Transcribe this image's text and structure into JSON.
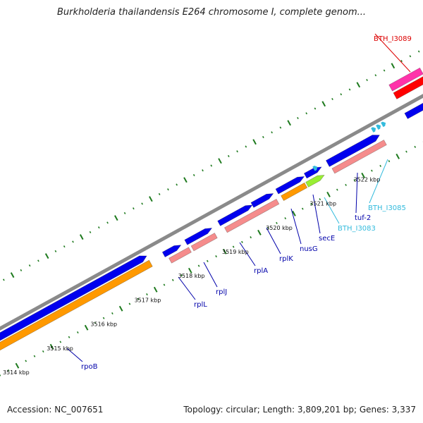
{
  "header": {
    "title": "Burkholderia thailandensis E264 chromosome I, complete genom..."
  },
  "footer": {
    "accession": "Accession: NC_007651",
    "summary": "Topology: circular; Length: 3,809,201 bp; Genes: 3,337"
  },
  "colors": {
    "backbone": "#8a8a8a",
    "cds": "#0000ee",
    "rna": "#f58c8c",
    "orange": "#ff9900",
    "green": "#99ee33",
    "magenta": "#ff33aa",
    "red": "#ff0000",
    "tick": "#1e7a1e",
    "label_dark": "#0000aa",
    "label_light": "#33bbdd",
    "label_red": "#dd0000"
  },
  "kbp_labels": [
    {
      "value": 3514,
      "text": "3514 kbp"
    },
    {
      "value": 3515,
      "text": "3515 kbp"
    },
    {
      "value": 3516,
      "text": "3516 kbp"
    },
    {
      "value": 3517,
      "text": "3517 kbp"
    },
    {
      "value": 3518,
      "text": "3518 kbp"
    },
    {
      "value": 3519,
      "text": "3519 kbp"
    },
    {
      "value": 3520,
      "text": "3520 kbp"
    },
    {
      "value": 3521,
      "text": "3521 kbp"
    },
    {
      "value": 3522,
      "text": "3522 kbp"
    }
  ],
  "gene_labels": [
    {
      "name": "rpoB",
      "color_key": "label_dark"
    },
    {
      "name": "rplL",
      "color_key": "label_dark"
    },
    {
      "name": "rplJ",
      "color_key": "label_dark"
    },
    {
      "name": "rplA",
      "color_key": "label_dark"
    },
    {
      "name": "rplK",
      "color_key": "label_dark"
    },
    {
      "name": "nusG",
      "color_key": "label_dark"
    },
    {
      "name": "secE",
      "color_key": "label_dark"
    },
    {
      "name": "BTH_I3083",
      "color_key": "label_light"
    },
    {
      "name": "tuf-2",
      "color_key": "label_dark"
    },
    {
      "name": "BTH_I3085",
      "color_key": "label_light"
    },
    {
      "name": "BTH_I3089",
      "color_key": "label_red"
    }
  ]
}
